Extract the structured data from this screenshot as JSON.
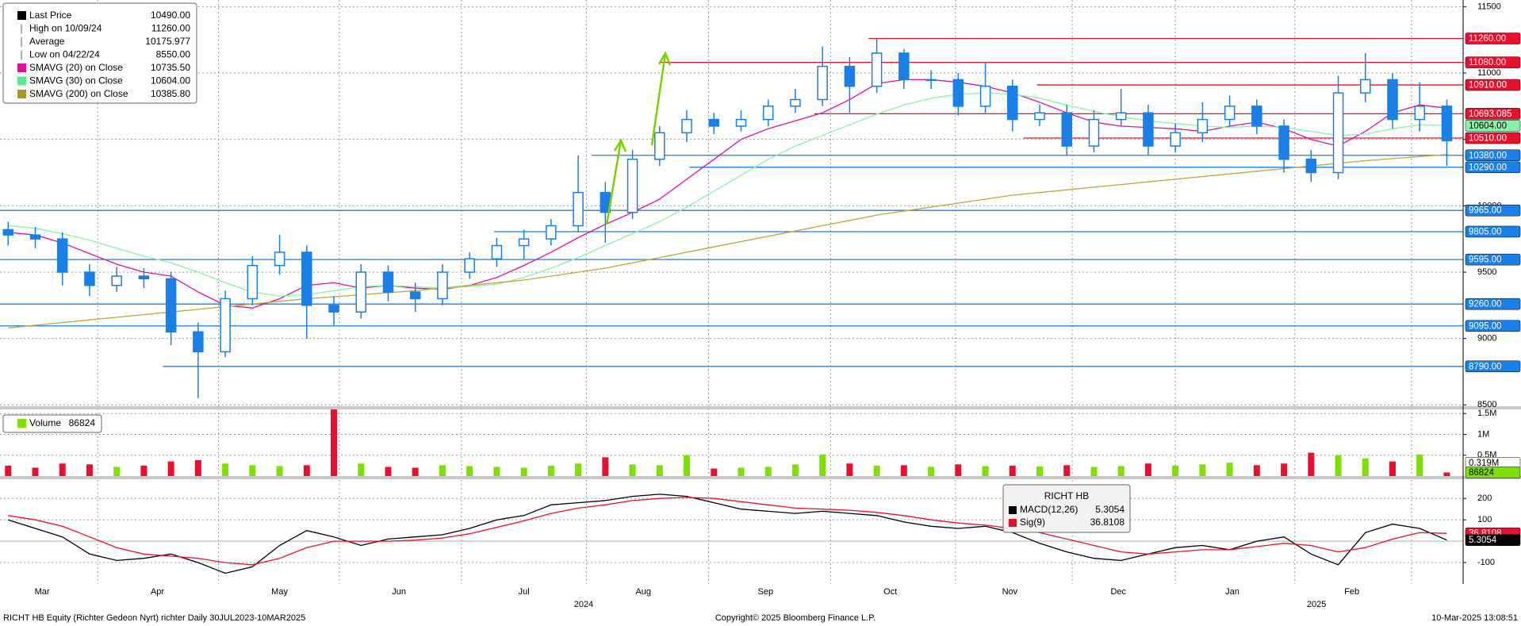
{
  "chart_data": [
    {
      "type": "candlestick",
      "legend": [
        {
          "label": "Last Price",
          "value": "10490.00",
          "color": "#000000"
        },
        {
          "label": "High on 10/09/24",
          "value": "11260.00"
        },
        {
          "label": "Average",
          "value": "10175.977"
        },
        {
          "label": "Low on 04/22/24",
          "value": "8550.00"
        },
        {
          "label": "SMAVG (20)  on Close",
          "value": "10735.50",
          "color": "#e0109a"
        },
        {
          "label": "SMAVG (30)  on Close",
          "value": "10604.00",
          "color": "#5fe88a"
        },
        {
          "label": "SMAVG (200) on Close",
          "value": "10385.80",
          "color": "#a89a2a"
        }
      ],
      "x": [
        0,
        1,
        2,
        3,
        4,
        5,
        6,
        7,
        8,
        9,
        10,
        11,
        12,
        13,
        14,
        15,
        16,
        17,
        18,
        19,
        20,
        21,
        22,
        23,
        24,
        25,
        26,
        27,
        28,
        29,
        30,
        31,
        32,
        33,
        34,
        35,
        36,
        37,
        38,
        39,
        40,
        41,
        42,
        43,
        44,
        45,
        46,
        47,
        48,
        49,
        50,
        51,
        52,
        53
      ],
      "open": [
        9820,
        9780,
        9750,
        9500,
        9400,
        9470,
        9450,
        9050,
        8900,
        9300,
        9550,
        9650,
        9250,
        9200,
        9500,
        9350,
        9300,
        9500,
        9600,
        9700,
        9750,
        9850,
        10100,
        9950,
        10350,
        10550,
        10650,
        10600,
        10650,
        10750,
        10800,
        11050,
        10900,
        11150,
        10950,
        10950,
        10750,
        10900,
        10650,
        10700,
        10450,
        10650,
        10700,
        10450,
        10550,
        10650,
        10750,
        10600,
        10350,
        10250,
        10850,
        10950,
        10650,
        10750
      ],
      "high": [
        9880,
        9840,
        9800,
        9560,
        9540,
        9530,
        9500,
        9120,
        9360,
        9620,
        9780,
        9700,
        9320,
        9560,
        9550,
        9420,
        9560,
        9650,
        9760,
        9820,
        9900,
        10380,
        10180,
        10420,
        10600,
        10720,
        10700,
        10720,
        10800,
        10880,
        11200,
        11120,
        11260,
        11180,
        11020,
        11000,
        11080,
        10950,
        10760,
        10760,
        10720,
        10880,
        10760,
        10620,
        10780,
        10830,
        10800,
        10650,
        10420,
        10980,
        11150,
        11000,
        10930,
        10800
      ],
      "low": [
        9700,
        9680,
        9400,
        9320,
        9350,
        9380,
        8950,
        8550,
        8860,
        9250,
        9480,
        9000,
        9100,
        9150,
        9280,
        9200,
        9250,
        9450,
        9540,
        9600,
        9700,
        9800,
        9720,
        9900,
        10300,
        10480,
        10540,
        10560,
        10600,
        10700,
        10750,
        10700,
        10850,
        10880,
        10880,
        10680,
        10700,
        10560,
        10600,
        10380,
        10400,
        10600,
        10380,
        10400,
        10480,
        10600,
        10540,
        10250,
        10180,
        10200,
        10780,
        10580,
        10560,
        10300
      ],
      "close": [
        9780,
        9750,
        9500,
        9400,
        9470,
        9450,
        9050,
        8900,
        9300,
        9550,
        9650,
        9250,
        9200,
        9500,
        9350,
        9300,
        9500,
        9600,
        9700,
        9750,
        9850,
        10100,
        9950,
        10350,
        10550,
        10650,
        10600,
        10650,
        10750,
        10800,
        11050,
        10900,
        11150,
        10950,
        10950,
        10750,
        10900,
        10650,
        10700,
        10450,
        10650,
        10700,
        10450,
        10550,
        10650,
        10750,
        10600,
        10350,
        10250,
        10850,
        10950,
        10650,
        10750,
        10490
      ],
      "color": "#1a7fe6",
      "series": [
        {
          "color": "#e0109a",
          "values": [
            9800,
            9780,
            9720,
            9640,
            9560,
            9500,
            9470,
            9350,
            9250,
            9230,
            9300,
            9400,
            9420,
            9380,
            9400,
            9380,
            9370,
            9400,
            9460,
            9550,
            9650,
            9760,
            9860,
            9950,
            10050,
            10200,
            10350,
            10500,
            10580,
            10640,
            10700,
            10800,
            10920,
            10950,
            10950,
            10930,
            10900,
            10850,
            10780,
            10700,
            10630,
            10600,
            10590,
            10580,
            10560,
            10600,
            10630,
            10580,
            10500,
            10450,
            10560,
            10700,
            10760,
            10735.5
          ]
        },
        {
          "color": "#8ef0a8",
          "value_label": "10604.00",
          "values": [
            9850,
            9830,
            9790,
            9740,
            9680,
            9620,
            9570,
            9500,
            9420,
            9350,
            9320,
            9330,
            9360,
            9390,
            9400,
            9390,
            9380,
            9390,
            9410,
            9460,
            9530,
            9610,
            9700,
            9790,
            9880,
            9990,
            10110,
            10230,
            10350,
            10450,
            10530,
            10610,
            10690,
            10760,
            10810,
            10840,
            10850,
            10840,
            10810,
            10760,
            10710,
            10670,
            10640,
            10620,
            10600,
            10590,
            10600,
            10590,
            10560,
            10530,
            10540,
            10580,
            10610,
            10604
          ]
        },
        {
          "color": "#b8aa3a",
          "values": [
            9080,
            9100,
            9120,
            9140,
            9160,
            9180,
            9200,
            9220,
            9240,
            9260,
            9280,
            9300,
            9315,
            9330,
            9345,
            9360,
            9380,
            9400,
            9420,
            9440,
            9470,
            9500,
            9530,
            9570,
            9610,
            9650,
            9690,
            9730,
            9770,
            9810,
            9850,
            9890,
            9930,
            9960,
            9990,
            10020,
            10050,
            10080,
            10100,
            10120,
            10140,
            10160,
            10180,
            10200,
            10220,
            10240,
            10260,
            10280,
            10300,
            10320,
            10340,
            10355,
            10370,
            10385.8
          ]
        }
      ],
      "levels": [
        {
          "value": 11260,
          "label": "11260.00",
          "color": "#e8112d",
          "start": 31.7
        },
        {
          "value": 11080,
          "label": "11080.00",
          "color": "#e8112d",
          "start": 24
        },
        {
          "value": 10910,
          "label": "10910.00",
          "color": "#e8112d",
          "start": 37.9
        },
        {
          "value": 10693.085,
          "label": "10693.085",
          "color": "#e8112d",
          "start": 29.7
        },
        {
          "value": 10510,
          "label": "10510.00",
          "color": "#e8112d",
          "start": 37.4
        },
        {
          "value": 10380,
          "label": "10380.00",
          "color": "#1a7fe6",
          "start": 21.5
        },
        {
          "value": 10290,
          "label": "10290.00",
          "color": "#1a7fe6",
          "start": 25.1
        },
        {
          "value": 9965,
          "label": "9965.00",
          "color": "#1a7fe6",
          "start": -0.3
        },
        {
          "value": 9805,
          "label": "9805.00",
          "color": "#1a7fe6",
          "start": 17.9
        },
        {
          "value": 9595,
          "label": "9595.00",
          "color": "#1a7fe6",
          "start": -0.3
        },
        {
          "value": 9260,
          "label": "9260.00",
          "color": "#1a7fe6",
          "start": -0.3
        },
        {
          "value": 9095,
          "label": "9095.00",
          "color": "#1a7fe6",
          "start": -0.3
        },
        {
          "value": 8790,
          "label": "8790.00",
          "color": "#1a7fe6",
          "start": 5.7
        }
      ],
      "xlim": [
        -0.3,
        53.6
      ],
      "xticks": [
        {
          "value": 1.25,
          "label": "Mar"
        },
        {
          "value": 5.5,
          "label": "Apr"
        },
        {
          "value": 10,
          "label": "May"
        },
        {
          "value": 14.4,
          "label": "Jun"
        },
        {
          "value": 19,
          "label": "Jul"
        },
        {
          "value": 23.4,
          "label": "Aug"
        },
        {
          "value": 27.9,
          "label": "Sep"
        },
        {
          "value": 32.5,
          "label": "Oct"
        },
        {
          "value": 36.9,
          "label": "Nov"
        },
        {
          "value": 40.9,
          "label": "Dec"
        },
        {
          "value": 45.1,
          "label": "Jan"
        },
        {
          "value": 49.5,
          "label": "Feb"
        }
      ],
      "year_ticks": [
        {
          "value": 21.2,
          "label": "2024"
        },
        {
          "value": 48.2,
          "label": "2025"
        }
      ],
      "xgrid": [
        3.3,
        7.75,
        12.2,
        16.7,
        21.3,
        25.8,
        30.3,
        34.9,
        39.2,
        43,
        47.4,
        51.7
      ],
      "ylim": [
        8490,
        11550
      ],
      "yticks": [
        8500,
        9000,
        9500,
        10000,
        10500,
        11000,
        11500
      ],
      "grid": true
    },
    {
      "type": "bar",
      "name": "Volume",
      "value_label": "86824",
      "up_color": "#7ee000",
      "down_color": "#e8112d",
      "values": [
        250000,
        200000,
        300000,
        280000,
        220000,
        250000,
        350000,
        380000,
        300000,
        260000,
        240000,
        260000,
        1600000,
        300000,
        220000,
        200000,
        260000,
        240000,
        220000,
        200000,
        250000,
        300000,
        450000,
        280000,
        260000,
        500000,
        180000,
        200000,
        220000,
        280000,
        520000,
        300000,
        250000,
        260000,
        220000,
        280000,
        240000,
        250000,
        230000,
        260000,
        220000,
        240000,
        300000,
        250000,
        280000,
        320000,
        260000,
        300000,
        560000,
        500000,
        420000,
        350000,
        520000,
        86824
      ],
      "avg": {
        "value": 319000,
        "label": "0.319M"
      },
      "ylim": [
        0,
        1600000
      ],
      "yticks": [
        {
          "value": 500000,
          "label": "0.5M"
        },
        {
          "value": 1000000,
          "label": "1M"
        },
        {
          "value": 1500000,
          "label": "1.5M"
        }
      ]
    },
    {
      "type": "line",
      "legend_title": "RICHT HB",
      "series": [
        {
          "name": "MACD(12,26)",
          "value_label": "5.3054",
          "color": "#000000",
          "values": [
            100,
            60,
            20,
            -60,
            -90,
            -80,
            -60,
            -100,
            -150,
            -120,
            -20,
            50,
            20,
            -20,
            10,
            20,
            30,
            60,
            100,
            120,
            170,
            180,
            190,
            210,
            220,
            210,
            180,
            150,
            140,
            130,
            140,
            130,
            120,
            90,
            70,
            60,
            70,
            40,
            -10,
            -50,
            -80,
            -90,
            -60,
            -30,
            -20,
            -40,
            0,
            20,
            -60,
            -110,
            40,
            80,
            60,
            5.3054
          ]
        },
        {
          "name": "Sig(9)",
          "value_label": "36.8108",
          "color": "#e8112d",
          "values": [
            120,
            100,
            70,
            20,
            -30,
            -60,
            -70,
            -80,
            -100,
            -110,
            -80,
            -30,
            0,
            0,
            0,
            5,
            15,
            35,
            65,
            95,
            130,
            155,
            170,
            190,
            200,
            205,
            200,
            185,
            170,
            155,
            150,
            145,
            135,
            120,
            100,
            85,
            75,
            60,
            40,
            10,
            -20,
            -50,
            -60,
            -50,
            -40,
            -40,
            -25,
            -10,
            -20,
            -50,
            -30,
            10,
            40,
            36.8108
          ]
        }
      ],
      "ylim": [
        -200,
        290
      ],
      "yticks": [
        -100,
        100,
        200
      ]
    }
  ],
  "footer": {
    "left": "RICHT HB Equity (Richter Gedeon Nyrt) richter  Daily 30JUL2023-10MAR2025",
    "center": "Copyright© 2025 Bloomberg Finance L.P.",
    "right": "10-Mar-2025 13:08:51"
  }
}
